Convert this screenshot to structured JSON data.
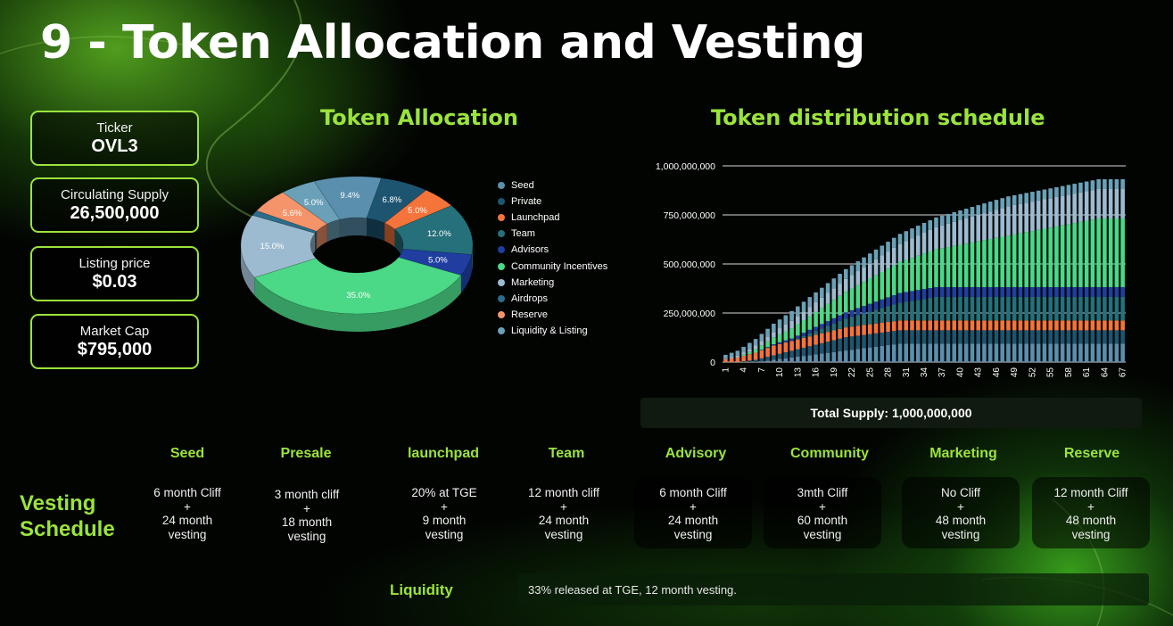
{
  "title": "9 - Token Allocation and Vesting",
  "stats": [
    {
      "label": "Ticker",
      "value": "OVL3"
    },
    {
      "label": "Circulating Supply",
      "value": "26,500,000"
    },
    {
      "label": "Listing price",
      "value": "$0.03"
    },
    {
      "label": "Market Cap",
      "value": "$795,000"
    }
  ],
  "allocation_title": "Token Allocation",
  "distribution_title": "Token distribution schedule",
  "total_supply": "Total Supply: 1,000,000,000",
  "chart_data": [
    {
      "type": "pie",
      "title": "Token Allocation",
      "style": "3d-donut",
      "legend_position": "right",
      "slices": [
        {
          "label": "Seed",
          "value": 9.4,
          "display": "9.4%",
          "color": "#5b8fae"
        },
        {
          "label": "Private",
          "value": 6.8,
          "display": "6.8%",
          "color": "#1d5571"
        },
        {
          "label": "Launchpad",
          "value": 5.0,
          "display": "5.0%",
          "color": "#f4743b"
        },
        {
          "label": "Team",
          "value": 12.0,
          "display": "12.0%",
          "color": "#25707a"
        },
        {
          "label": "Advisors",
          "value": 5.0,
          "display": "5.0%",
          "color": "#1f3ea0"
        },
        {
          "label": "Community Incentives",
          "value": 35.0,
          "display": "35.0%",
          "color": "#4bd887"
        },
        {
          "label": "Marketing",
          "value": 15.0,
          "display": "15.0%",
          "color": "#9dbbd0"
        },
        {
          "label": "Airdrops",
          "value": 1.2,
          "display": "",
          "color": "#2b6d8a"
        },
        {
          "label": "Reserve",
          "value": 5.6,
          "display": "5.6%",
          "color": "#f5946a"
        },
        {
          "label": "Liquidity & Listing",
          "value": 5.0,
          "display": "5.0%",
          "color": "#6aa1b8"
        }
      ]
    },
    {
      "type": "bar",
      "stacked": true,
      "title": "Token distribution schedule",
      "x": [
        1,
        2,
        3,
        4,
        5,
        6,
        7,
        8,
        9,
        10,
        11,
        12,
        13,
        14,
        15,
        16,
        17,
        18,
        19,
        20,
        21,
        22,
        23,
        24,
        25,
        26,
        27,
        28,
        29,
        30,
        31,
        32,
        33,
        34,
        35,
        36,
        37,
        38,
        39,
        40,
        41,
        42,
        43,
        44,
        45,
        46,
        47,
        48,
        49,
        50,
        51,
        52,
        53,
        54,
        55,
        56,
        57,
        58,
        59,
        60,
        61,
        62,
        63,
        64,
        65,
        66,
        67
      ],
      "x_tick_labels": [
        "1",
        "4",
        "7",
        "10",
        "13",
        "16",
        "19",
        "22",
        "25",
        "28",
        "31",
        "34",
        "37",
        "40",
        "43",
        "46",
        "49",
        "52",
        "55",
        "58",
        "61",
        "64",
        "67"
      ],
      "ylim": [
        0,
        1000000000
      ],
      "y_ticks": [
        "0",
        "250,000,000",
        "500,000,000",
        "750,000,000",
        "1,000,000,000"
      ],
      "grid": true,
      "series": [
        {
          "name": "Seed",
          "color": "#5b8fae",
          "total": 94000000,
          "tge": 0,
          "cliff": 6,
          "vest": 24
        },
        {
          "name": "Private",
          "color": "#1d5571",
          "total": 68000000,
          "tge": 0,
          "cliff": 3,
          "vest": 18
        },
        {
          "name": "Launchpad",
          "color": "#f4743b",
          "total": 50000000,
          "tge": 0.2,
          "cliff": 0,
          "vest": 9
        },
        {
          "name": "Team",
          "color": "#25707a",
          "total": 120000000,
          "tge": 0,
          "cliff": 12,
          "vest": 24
        },
        {
          "name": "Advisors",
          "color": "#1f3ea0",
          "total": 50000000,
          "tge": 0,
          "cliff": 6,
          "vest": 24
        },
        {
          "name": "Community Incentives",
          "color": "#4bd887",
          "total": 350000000,
          "tge": 0,
          "cliff": 3,
          "vest": 60
        },
        {
          "name": "Marketing",
          "color": "#9dbbd0",
          "total": 150000000,
          "tge": 0,
          "cliff": 0,
          "vest": 48
        },
        {
          "name": "Liquidity & Listing",
          "color": "#6aa1b8",
          "total": 50000000,
          "tge": 0.33,
          "cliff": 0,
          "vest": 12
        }
      ]
    }
  ],
  "vesting": {
    "title_line1": "Vesting",
    "title_line2": "Schedule",
    "columns": [
      {
        "name": "Seed",
        "line1": "6 month Cliff",
        "plus": "+",
        "line2": "24 month",
        "line3": "vesting"
      },
      {
        "name": "Presale",
        "line1": "3 month cliff",
        "plus": "+",
        "line2": "18 month",
        "line3": "vesting"
      },
      {
        "name": "launchpad",
        "line1": "20% at TGE",
        "plus": "+",
        "line2": "9 month",
        "line3": "vesting"
      },
      {
        "name": "Team",
        "line1": "12 month cliff",
        "plus": "+",
        "line2": "24 month",
        "line3": "vesting"
      },
      {
        "name": "Advisory",
        "line1": "6 month Cliff",
        "plus": "+",
        "line2": "24  month",
        "line3": "vesting"
      },
      {
        "name": "Community",
        "line1": "3mth Cliff",
        "plus": "+",
        "line2": "60 month",
        "line3": "vesting"
      },
      {
        "name": "Marketing",
        "line1": "No Cliff",
        "plus": "+",
        "line2": "48 month",
        "line3": "vesting"
      },
      {
        "name": "Reserve",
        "line1": "12 month Cliff",
        "plus": "+",
        "line2": "48 month",
        "line3": "vesting"
      }
    ],
    "liquidity_label": "Liquidity",
    "liquidity_text": "33% released at TGE, 12 month vesting."
  }
}
